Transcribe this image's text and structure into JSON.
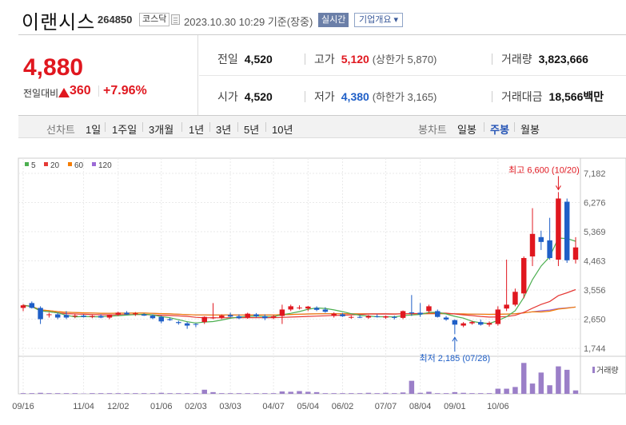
{
  "header": {
    "name": "이랜시스",
    "code": "264850",
    "market": "코스닥",
    "timestamp": "2023.10.30 10:29 기준(장중)",
    "realtime_label": "실시간",
    "overview_label": "기업개요 ▾"
  },
  "price": {
    "current": "4,880",
    "change_label": "전일대비",
    "change_value": "360",
    "change_rate": "+7.96%"
  },
  "stats": {
    "prev_close": {
      "label": "전일",
      "value": "4,520"
    },
    "high": {
      "label": "고가",
      "value": "5,120",
      "sub": "(상한가 5,870)"
    },
    "volume": {
      "label": "거래량",
      "value": "3,823,666"
    },
    "open": {
      "label": "시가",
      "value": "4,520"
    },
    "low": {
      "label": "저가",
      "value": "4,380",
      "sub": "(하한가 3,165)"
    },
    "turnover": {
      "label": "거래대금",
      "value": "18,566",
      "unit": "백만"
    }
  },
  "line_chart_tabs": {
    "label": "선차트",
    "items": [
      "1일",
      "1주일",
      "3개월",
      "1년",
      "3년",
      "5년",
      "10년"
    ]
  },
  "candle_tabs": {
    "label": "봉차트",
    "items": [
      "일봉",
      "주봉",
      "월봉"
    ],
    "active": "주봉"
  },
  "colors": {
    "up": "#e0171f",
    "down": "#1f5fc7",
    "ma5": "#4caf50",
    "ma20": "#e53935",
    "ma60": "#f57c00",
    "ma120": "#9c6ad6",
    "volume": "#9b7fc8"
  },
  "chart_data": {
    "type": "candlestick",
    "legend": [
      {
        "name": "5",
        "color": "#4caf50"
      },
      {
        "name": "20",
        "color": "#e53935"
      },
      {
        "name": "60",
        "color": "#f57c00"
      },
      {
        "name": "120",
        "color": "#9c6ad6"
      }
    ],
    "y_ticks": [
      "7,182",
      "6,276",
      "5,369",
      "4,463",
      "3,556",
      "2,650",
      "1,744"
    ],
    "y_tick_values": [
      7182,
      6276,
      5369,
      4463,
      3556,
      2650,
      1744
    ],
    "ylim": [
      1744,
      7182
    ],
    "x_ticks": [
      "09/16",
      "11/04",
      "12/02",
      "01/06",
      "02/03",
      "03/03",
      "04/07",
      "05/04",
      "06/02",
      "07/07",
      "08/04",
      "09/01",
      "10/06"
    ],
    "x_tick_index": [
      0,
      7,
      11,
      16,
      20,
      24,
      29,
      33,
      37,
      42,
      46,
      50,
      55
    ],
    "candles": [
      [
        3000,
        3120,
        2900,
        3080
      ],
      [
        3150,
        3200,
        2980,
        3000
      ],
      [
        3000,
        3050,
        2500,
        2650
      ],
      [
        2780,
        2850,
        2700,
        2800
      ],
      [
        2800,
        2850,
        2650,
        2700
      ],
      [
        2780,
        2900,
        2650,
        2700
      ],
      [
        2740,
        2800,
        2680,
        2760
      ],
      [
        2760,
        2800,
        2700,
        2720
      ],
      [
        2720,
        2780,
        2680,
        2750
      ],
      [
        2750,
        2800,
        2680,
        2700
      ],
      [
        2700,
        2800,
        2650,
        2780
      ],
      [
        2800,
        2880,
        2750,
        2850
      ],
      [
        2850,
        2900,
        2780,
        2800
      ],
      [
        2800,
        2870,
        2750,
        2830
      ],
      [
        2800,
        2830,
        2750,
        2760
      ],
      [
        2760,
        2800,
        2650,
        2680
      ],
      [
        2720,
        2760,
        2520,
        2580
      ],
      [
        2650,
        2700,
        2600,
        2620
      ],
      [
        2560,
        2600,
        2480,
        2530
      ],
      [
        2520,
        2560,
        2350,
        2450
      ],
      [
        2500,
        2520,
        2400,
        2480
      ],
      [
        2560,
        2740,
        2500,
        2720
      ],
      [
        2700,
        3150,
        2650,
        2700
      ],
      [
        2700,
        2800,
        2650,
        2760
      ],
      [
        2780,
        2850,
        2700,
        2730
      ],
      [
        2740,
        2800,
        2650,
        2680
      ],
      [
        2700,
        2850,
        2660,
        2820
      ],
      [
        2800,
        2840,
        2700,
        2740
      ],
      [
        2740,
        2800,
        2620,
        2680
      ],
      [
        2700,
        2780,
        2650,
        2740
      ],
      [
        2750,
        3100,
        2500,
        2950
      ],
      [
        2950,
        3100,
        2900,
        3050
      ],
      [
        3000,
        3080,
        2950,
        3010
      ],
      [
        2980,
        3060,
        2900,
        3040
      ],
      [
        3000,
        3050,
        2900,
        2940
      ],
      [
        2950,
        3020,
        2850,
        2880
      ],
      [
        2750,
        2860,
        2700,
        2820
      ],
      [
        2800,
        2840,
        2720,
        2740
      ],
      [
        2700,
        2760,
        2660,
        2720
      ],
      [
        2720,
        2780,
        2680,
        2700
      ],
      [
        2700,
        2780,
        2660,
        2750
      ],
      [
        2740,
        2800,
        2700,
        2720
      ],
      [
        2700,
        2760,
        2660,
        2740
      ],
      [
        2720,
        2760,
        2640,
        2690
      ],
      [
        2690,
        2920,
        2650,
        2900
      ],
      [
        2860,
        3400,
        2750,
        2850
      ],
      [
        2850,
        3150,
        2720,
        2800
      ],
      [
        2900,
        3100,
        2850,
        3050
      ],
      [
        2900,
        2950,
        2700,
        2720
      ],
      [
        2700,
        2750,
        2600,
        2640
      ],
      [
        2620,
        2640,
        2185,
        2480
      ],
      [
        2450,
        2560,
        2400,
        2520
      ],
      [
        2520,
        2600,
        2480,
        2560
      ],
      [
        2560,
        2640,
        2450,
        2480
      ],
      [
        2480,
        2580,
        2420,
        2530
      ],
      [
        2500,
        3050,
        2450,
        2950
      ],
      [
        2980,
        4500,
        2900,
        3100
      ],
      [
        3100,
        3600,
        3050,
        3500
      ],
      [
        3450,
        4600,
        3300,
        4550
      ],
      [
        4600,
        6100,
        4300,
        5300
      ],
      [
        5200,
        5400,
        4800,
        5050
      ],
      [
        5100,
        5800,
        4500,
        4550
      ],
      [
        4500,
        6600,
        4300,
        6400
      ],
      [
        6300,
        6400,
        4400,
        4480
      ],
      [
        4500,
        5200,
        4380,
        4880
      ]
    ],
    "annotations": [
      {
        "text": "최고 6,600 (10/20)",
        "value": 6600,
        "index": 62,
        "color": "#e0171f"
      },
      {
        "text": "최저 2,185 (07/28)",
        "value": 2185,
        "index": 50,
        "color": "#1f5fc7"
      }
    ],
    "volume_label": "거래량",
    "volume": [
      0.02,
      0.02,
      0.03,
      0.02,
      0.02,
      0.02,
      0.02,
      0.01,
      0.02,
      0.02,
      0.02,
      0.02,
      0.02,
      0.02,
      0.02,
      0.02,
      0.03,
      0.02,
      0.02,
      0.02,
      0.02,
      0.12,
      0.05,
      0.02,
      0.02,
      0.02,
      0.02,
      0.02,
      0.02,
      0.02,
      0.07,
      0.06,
      0.08,
      0.06,
      0.05,
      0.02,
      0.02,
      0.02,
      0.02,
      0.02,
      0.03,
      0.02,
      0.03,
      0.02,
      0.04,
      0.38,
      0.03,
      0.06,
      0.02,
      0.02,
      0.05,
      0.03,
      0.02,
      0.02,
      0.02,
      0.15,
      0.15,
      0.2,
      0.9,
      0.3,
      0.62,
      0.25,
      0.8,
      0.7,
      0.1
    ]
  }
}
